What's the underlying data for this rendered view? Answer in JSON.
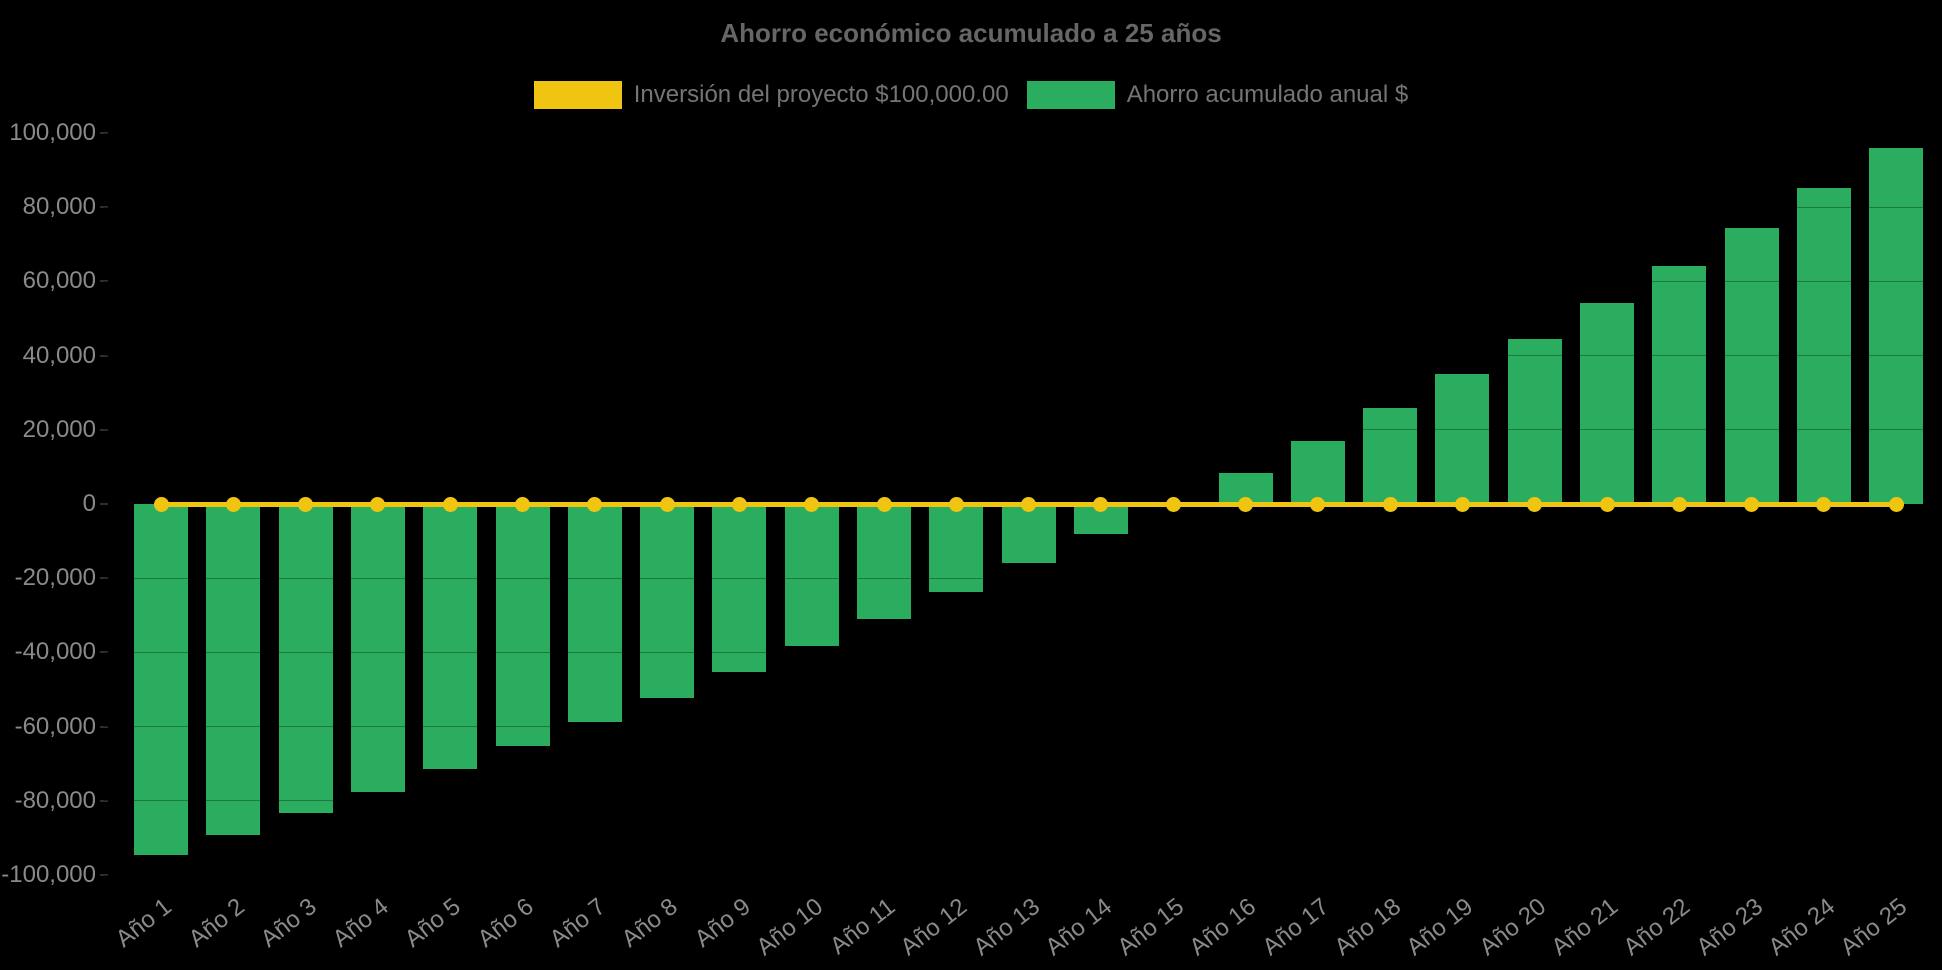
{
  "header": {
    "title": "Ahorro económico acumulado a 25 años"
  },
  "colors": {
    "background": "#000000",
    "investment_yellow": "#F0C512",
    "savings_green": "#2BAD60",
    "title_gray": "#666666",
    "axis_label_gray": "#8A8A8A",
    "legend_text_gray": "#757575"
  },
  "chart_data": {
    "type": "bar",
    "title": "Ahorro económico acumulado a 25 años",
    "categories": [
      "Año 1",
      "Año 2",
      "Año 3",
      "Año 4",
      "Año 5",
      "Año 6",
      "Año 7",
      "Año 8",
      "Año 9",
      "Año 10",
      "Año 11",
      "Año 12",
      "Año 13",
      "Año 14",
      "Año 15",
      "Año 16",
      "Año 17",
      "Año 18",
      "Año 19",
      "Año 20",
      "Año 21",
      "Año 22",
      "Año 23",
      "Año 24",
      "Año 25"
    ],
    "series": [
      {
        "name": "Inversión del proyecto $100,000.00",
        "type": "line",
        "color": "#F0C512",
        "marker": "circle",
        "values": [
          0,
          0,
          0,
          0,
          0,
          0,
          0,
          0,
          0,
          0,
          0,
          0,
          0,
          0,
          0,
          0,
          0,
          0,
          0,
          0,
          0,
          0,
          0,
          0,
          0
        ]
      },
      {
        "name": "Ahorro acumulado anual $",
        "type": "bar",
        "color": "#2BAD60",
        "values": [
          -94600,
          -89100,
          -83400,
          -77500,
          -71500,
          -65200,
          -58800,
          -52200,
          -45400,
          -38400,
          -31100,
          -23700,
          -16000,
          -8100,
          0,
          8400,
          17000,
          25900,
          35000,
          44500,
          54200,
          64200,
          74500,
          85100,
          96000
        ]
      }
    ],
    "xlabel": "",
    "ylabel": "",
    "ylim": [
      -100000,
      100000
    ],
    "y_ticks": {
      "values": [
        100000,
        80000,
        60000,
        40000,
        20000,
        0,
        -20000,
        -40000,
        -60000,
        -80000,
        -100000
      ],
      "labels": [
        "100,000",
        "80,000",
        "60,000",
        "40,000",
        "20,000",
        "0",
        "-20,000",
        "-40,000",
        "-60,000",
        "-80,000",
        "-100,000"
      ]
    },
    "x_label_rotation_deg": -38,
    "grid": false,
    "legend_position": "top"
  }
}
